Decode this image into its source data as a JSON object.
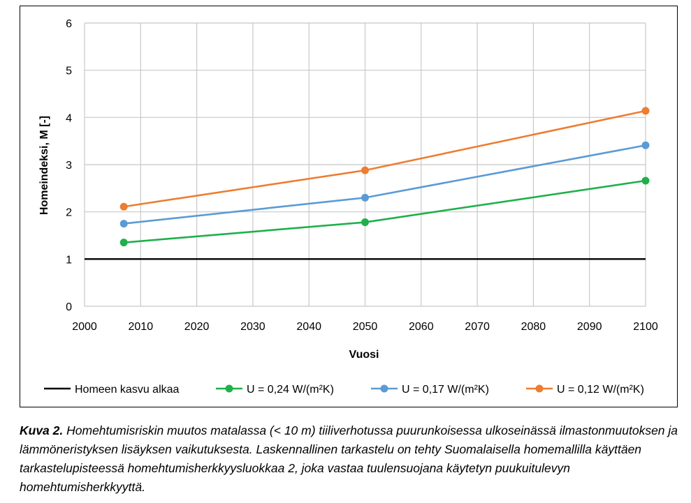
{
  "chart_data": {
    "type": "line",
    "xlabel": "Vuosi",
    "ylabel": "Homeindeksi, M [-]",
    "xlim": [
      2000,
      2100
    ],
    "ylim": [
      0,
      6
    ],
    "x_ticks": [
      "2000",
      "2010",
      "2020",
      "2030",
      "2040",
      "2050",
      "2060",
      "2070",
      "2080",
      "2090",
      "2100"
    ],
    "y_ticks": [
      "0",
      "1",
      "2",
      "3",
      "4",
      "5",
      "6"
    ],
    "grid": true,
    "legend_position": "bottom",
    "series": [
      {
        "name": "Homeen kasvu alkaa",
        "color": "#000000",
        "markers": false,
        "x": [
          2000,
          2100
        ],
        "y": [
          1,
          1
        ]
      },
      {
        "name": "U = 0,24 W/(m²K)",
        "color": "#1fb04b",
        "markers": true,
        "x": [
          2007,
          2050,
          2100
        ],
        "y": [
          1.35,
          1.78,
          2.66
        ]
      },
      {
        "name": "U = 0,17 W/(m²K)",
        "color": "#5b9bd5",
        "markers": true,
        "x": [
          2007,
          2050,
          2100
        ],
        "y": [
          1.75,
          2.3,
          3.41
        ]
      },
      {
        "name": "U = 0,12 W/(m²K)",
        "color": "#ed7d31",
        "markers": true,
        "x": [
          2007,
          2050,
          2100
        ],
        "y": [
          2.11,
          2.88,
          4.14
        ]
      }
    ]
  },
  "caption": {
    "label": "Kuva 2.",
    "text": "Homehtumisriskin muutos matalassa (< 10 m) tiiliverhotussa puurunkoisessa ulkoseinässä ilmastonmuutoksen ja lämmöneristyksen lisäyksen vaikutuksesta. Laskennallinen tarkastelu on tehty Suomalaisella homemallilla käyttäen tarkastelupisteessä homehtumisherkkyysluokkaa 2, joka vastaa tuulensuojana käytetyn puukuitulevyn homehtumisherkkyyttä."
  }
}
